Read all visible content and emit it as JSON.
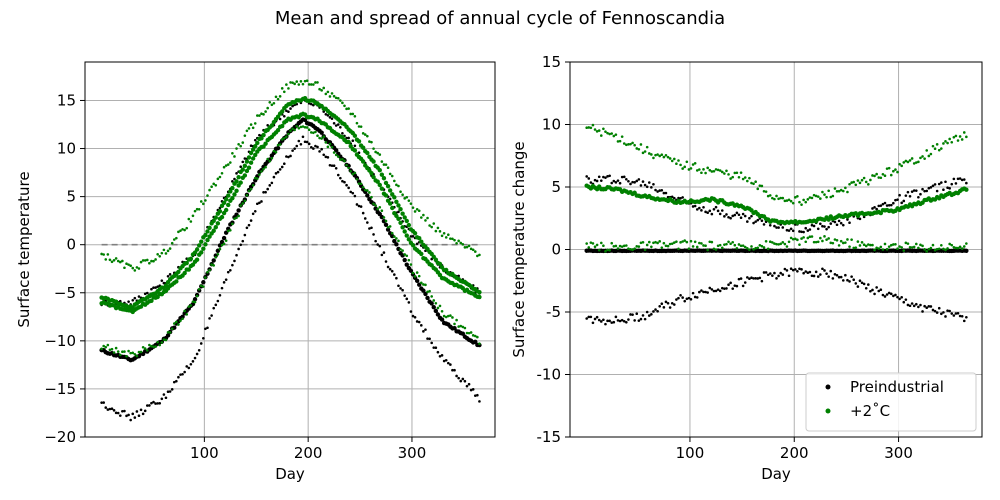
{
  "title": "Mean and spread of annual cycle of Fennoscandia",
  "colors": {
    "preindustrial": "#000000",
    "plus2": "#008000",
    "zero_line": "#808080",
    "grid": "#b0b0b0"
  },
  "chart_data": [
    {
      "type": "scatter",
      "xlabel": "Day",
      "ylabel": "Surface temperature",
      "xlim": [
        -15,
        380
      ],
      "ylim": [
        -20,
        19
      ],
      "xticks": [
        100,
        200,
        300
      ],
      "yticks": [
        -20,
        -15,
        -10,
        -5,
        0,
        5,
        10,
        15
      ],
      "ytick_labels": [
        "−20",
        "−15",
        "−10",
        "−5",
        "0",
        "5",
        "10",
        "15"
      ],
      "grid": true,
      "reference_line": {
        "y": 0,
        "style": "dashed",
        "x_range": [
          1,
          365
        ]
      },
      "series": [
        {
          "group": "preindustrial",
          "stat": "mean",
          "x": [
            1,
            30,
            60,
            90,
            120,
            150,
            180,
            195,
            210,
            240,
            270,
            300,
            330,
            365
          ],
          "y": [
            -11,
            -12,
            -10,
            -6,
            1,
            7,
            11.5,
            13,
            12,
            8,
            3,
            -3,
            -8,
            -10.5
          ]
        },
        {
          "group": "preindustrial",
          "stat": "upper",
          "x": [
            1,
            30,
            60,
            90,
            120,
            150,
            180,
            195,
            210,
            240,
            270,
            300,
            330,
            365
          ],
          "y": [
            -6,
            -6,
            -4,
            -1,
            5,
            11,
            14,
            15,
            14.5,
            11,
            6,
            1,
            -2.5,
            -5
          ]
        },
        {
          "group": "preindustrial",
          "stat": "lower",
          "x": [
            1,
            30,
            60,
            90,
            120,
            150,
            180,
            195,
            210,
            240,
            270,
            300,
            330,
            365
          ],
          "y": [
            -16.5,
            -18,
            -16,
            -12,
            -4,
            4,
            9,
            11,
            10,
            6,
            -0.5,
            -7,
            -12,
            -16
          ]
        },
        {
          "group": "plus2",
          "stat": "mean",
          "x": [
            1,
            30,
            60,
            90,
            120,
            150,
            180,
            195,
            210,
            240,
            270,
            300,
            330,
            365
          ],
          "y": [
            -6,
            -7,
            -5,
            -2,
            3.5,
            9.5,
            13,
            13.5,
            13,
            10.5,
            6,
            0,
            -3.5,
            -5.5
          ]
        },
        {
          "group": "plus2",
          "stat": "upper",
          "x": [
            1,
            30,
            60,
            90,
            120,
            150,
            180,
            195,
            210,
            240,
            270,
            300,
            330,
            365
          ],
          "y": [
            -1,
            -2.5,
            -1,
            3,
            8,
            13,
            16.5,
            17,
            16.5,
            14,
            9,
            4,
            1,
            -1
          ]
        },
        {
          "group": "plus2",
          "stat": "lower",
          "x": [
            1,
            30,
            60,
            90,
            120,
            150,
            180,
            195,
            210,
            240,
            270,
            300,
            330,
            365
          ],
          "y": [
            -10.5,
            -11.5,
            -10,
            -6,
            0.5,
            7,
            11.5,
            12.5,
            11.5,
            8,
            3.5,
            -2.5,
            -7,
            -10
          ]
        },
        {
          "group": "plus2",
          "stat": "mean_high",
          "x": [
            1,
            30,
            60,
            90,
            120,
            150,
            180,
            195,
            210,
            240,
            270,
            300,
            330,
            365
          ],
          "y": [
            -5.5,
            -6.5,
            -4.5,
            -1,
            4.5,
            10.5,
            14.5,
            15.2,
            14.7,
            12,
            7.5,
            1.5,
            -2.5,
            -5
          ]
        }
      ]
    },
    {
      "type": "scatter",
      "xlabel": "Day",
      "ylabel": "Surface temperature change",
      "xlim": [
        -15,
        380
      ],
      "ylim": [
        -15,
        15
      ],
      "xticks": [
        100,
        200,
        300
      ],
      "yticks": [
        -15,
        -10,
        -5,
        0,
        5,
        10,
        15
      ],
      "ytick_labels": [
        "-15",
        "-10",
        "-5",
        "0",
        "5",
        "10",
        "15"
      ],
      "grid": true,
      "legend": {
        "placement": "lower right",
        "entries": [
          {
            "label": "Preindustrial",
            "group": "preindustrial"
          },
          {
            "label": "+2˚C",
            "group": "plus2"
          }
        ]
      },
      "series": [
        {
          "group": "preindustrial",
          "stat": "mean",
          "x": [
            1,
            30,
            60,
            90,
            120,
            150,
            180,
            210,
            240,
            270,
            300,
            330,
            365
          ],
          "y": [
            -0.1,
            -0.1,
            -0.1,
            -0.1,
            -0.1,
            -0.1,
            -0.1,
            -0.1,
            -0.1,
            -0.1,
            -0.1,
            -0.1,
            -0.1
          ]
        },
        {
          "group": "preindustrial",
          "stat": "upper",
          "x": [
            1,
            30,
            60,
            90,
            120,
            150,
            180,
            210,
            240,
            270,
            300,
            330,
            365
          ],
          "y": [
            5.5,
            5.7,
            5.2,
            4,
            3.2,
            2.6,
            2,
            1.7,
            2,
            3,
            4,
            4.8,
            5.6
          ]
        },
        {
          "group": "preindustrial",
          "stat": "lower",
          "x": [
            1,
            30,
            60,
            90,
            120,
            150,
            180,
            210,
            240,
            270,
            300,
            330,
            365
          ],
          "y": [
            -5.5,
            -5.7,
            -5.2,
            -4,
            -3.2,
            -2.6,
            -2,
            -1.7,
            -2,
            -3,
            -4,
            -4.8,
            -5.6
          ]
        },
        {
          "group": "plus2",
          "stat": "mean",
          "x": [
            1,
            30,
            60,
            90,
            120,
            150,
            180,
            210,
            240,
            270,
            300,
            330,
            365
          ],
          "y": [
            5,
            4.8,
            4.2,
            3.8,
            4,
            3.5,
            2.2,
            2.2,
            2.6,
            2.9,
            3.2,
            4,
            4.8
          ]
        },
        {
          "group": "plus2",
          "stat": "upper",
          "x": [
            1,
            30,
            60,
            90,
            120,
            150,
            180,
            210,
            240,
            270,
            300,
            330,
            365
          ],
          "y": [
            9.8,
            9,
            7.8,
            6.8,
            6.3,
            5.8,
            4.2,
            3.9,
            4.6,
            5.5,
            6.5,
            7.8,
            9.3
          ]
        },
        {
          "group": "plus2",
          "stat": "lower",
          "x": [
            1,
            30,
            60,
            90,
            120,
            150,
            180,
            210,
            240,
            270,
            300,
            330,
            365
          ],
          "y": [
            0.2,
            0.2,
            0.3,
            0.4,
            0.3,
            0.3,
            0.4,
            0.8,
            0.7,
            0.3,
            0.2,
            0.2,
            0.3
          ]
        }
      ]
    }
  ]
}
